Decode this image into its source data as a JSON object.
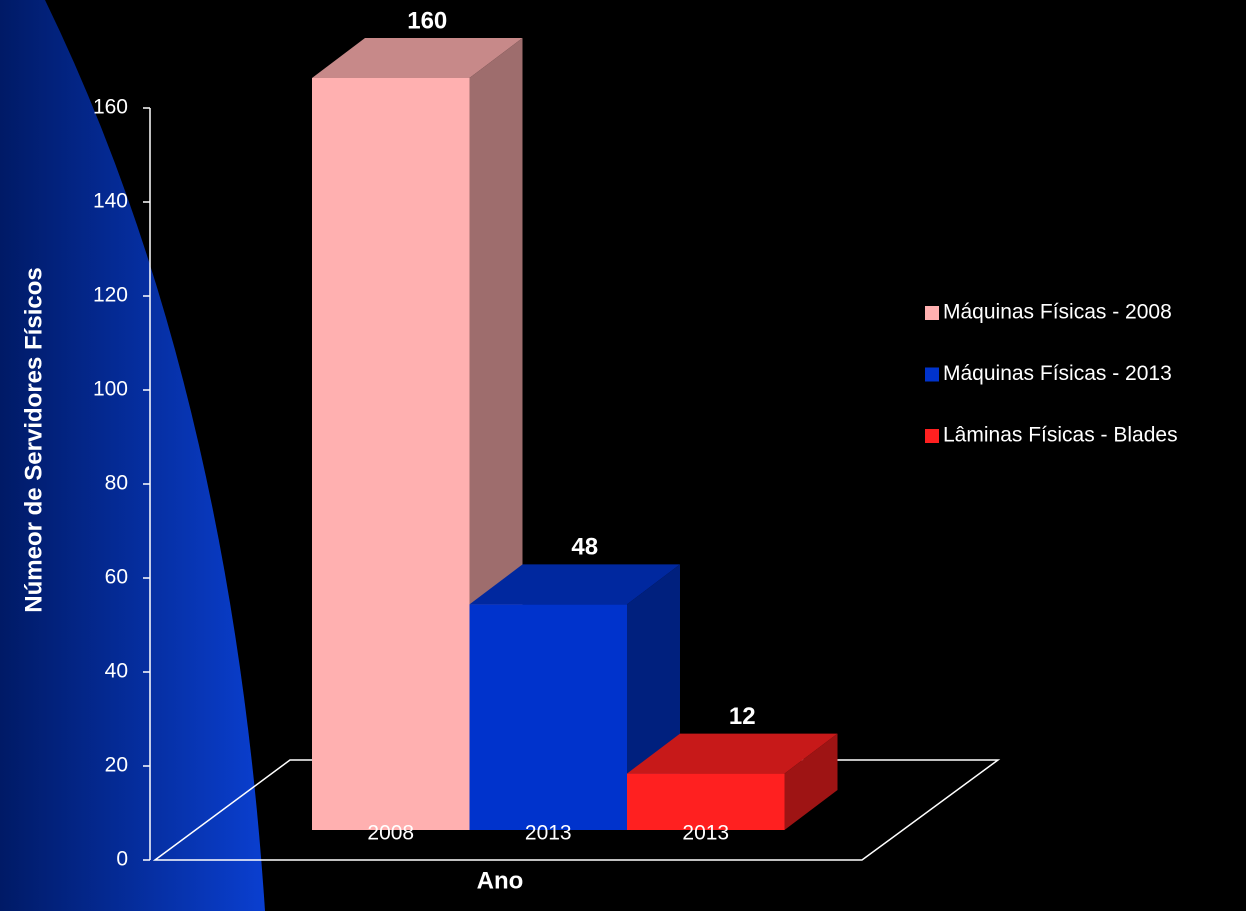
{
  "chart_data": {
    "type": "bar3d",
    "categories": [
      "2008",
      "2013",
      "2013"
    ],
    "series": [
      {
        "name": "Máquinas Físicas - 2008",
        "color": "#ffb0b0",
        "values": [
          160,
          null,
          null
        ]
      },
      {
        "name": "Máquinas Físicas - 2013",
        "color": "#0033cc",
        "values": [
          null,
          48,
          null
        ]
      },
      {
        "name": "Lâminas Físicas - Blades",
        "color": "#ff2020",
        "values": [
          null,
          null,
          12
        ]
      }
    ],
    "ylim": [
      0,
      160
    ],
    "yticks": [
      0,
      20,
      40,
      60,
      80,
      100,
      120,
      140,
      160
    ],
    "y_label": "Númeor de Servidores Físicos",
    "x_label": "Ano",
    "legend": "right"
  }
}
